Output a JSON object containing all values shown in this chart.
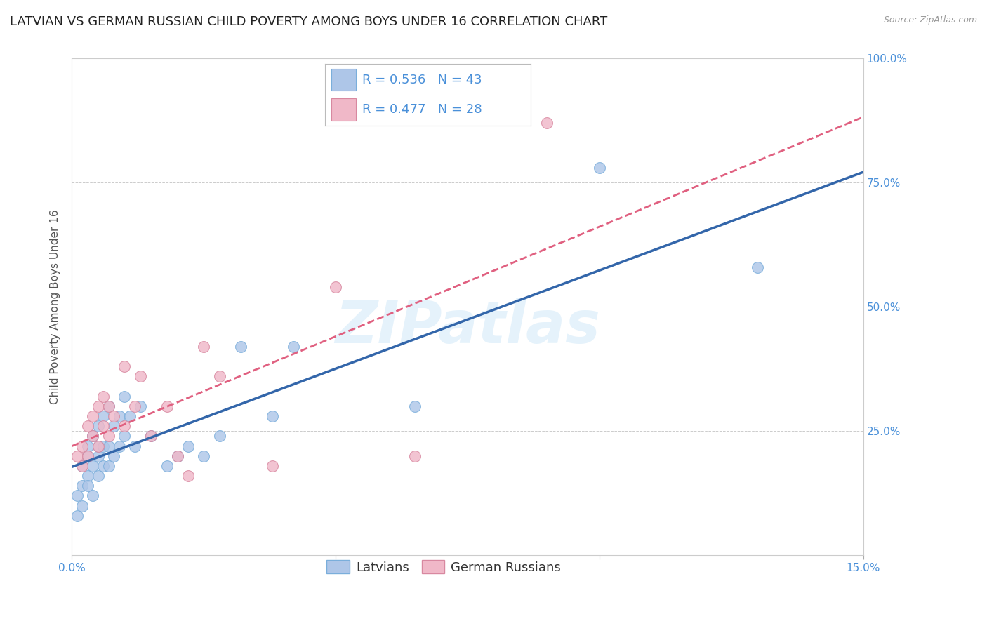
{
  "title": "LATVIAN VS GERMAN RUSSIAN CHILD POVERTY AMONG BOYS UNDER 16 CORRELATION CHART",
  "source": "Source: ZipAtlas.com",
  "ylabel": "Child Poverty Among Boys Under 16",
  "xlim": [
    0,
    0.15
  ],
  "ylim": [
    0,
    1.0
  ],
  "xticks": [
    0.0,
    0.05,
    0.1,
    0.15
  ],
  "xticklabels": [
    "0.0%",
    "",
    "",
    "15.0%"
  ],
  "yticks": [
    0.0,
    0.25,
    0.5,
    0.75,
    1.0
  ],
  "ytick_right_labels": [
    "",
    "25.0%",
    "50.0%",
    "75.0%",
    "100.0%"
  ],
  "latvians_x": [
    0.001,
    0.001,
    0.002,
    0.002,
    0.002,
    0.003,
    0.003,
    0.003,
    0.003,
    0.004,
    0.004,
    0.004,
    0.005,
    0.005,
    0.005,
    0.005,
    0.006,
    0.006,
    0.006,
    0.007,
    0.007,
    0.007,
    0.008,
    0.008,
    0.009,
    0.009,
    0.01,
    0.01,
    0.011,
    0.012,
    0.013,
    0.015,
    0.018,
    0.02,
    0.022,
    0.025,
    0.028,
    0.032,
    0.038,
    0.042,
    0.065,
    0.1,
    0.13
  ],
  "latvians_y": [
    0.12,
    0.08,
    0.18,
    0.14,
    0.1,
    0.22,
    0.16,
    0.2,
    0.14,
    0.24,
    0.18,
    0.12,
    0.26,
    0.2,
    0.16,
    0.22,
    0.28,
    0.22,
    0.18,
    0.3,
    0.22,
    0.18,
    0.26,
    0.2,
    0.28,
    0.22,
    0.32,
    0.24,
    0.28,
    0.22,
    0.3,
    0.24,
    0.18,
    0.2,
    0.22,
    0.2,
    0.24,
    0.42,
    0.28,
    0.42,
    0.3,
    0.78,
    0.58
  ],
  "german_russians_x": [
    0.001,
    0.002,
    0.002,
    0.003,
    0.003,
    0.004,
    0.004,
    0.005,
    0.005,
    0.006,
    0.006,
    0.007,
    0.007,
    0.008,
    0.01,
    0.01,
    0.012,
    0.013,
    0.015,
    0.018,
    0.02,
    0.022,
    0.025,
    0.028,
    0.038,
    0.05,
    0.065,
    0.09
  ],
  "german_russians_y": [
    0.2,
    0.22,
    0.18,
    0.26,
    0.2,
    0.28,
    0.24,
    0.3,
    0.22,
    0.32,
    0.26,
    0.3,
    0.24,
    0.28,
    0.38,
    0.26,
    0.3,
    0.36,
    0.24,
    0.3,
    0.2,
    0.16,
    0.42,
    0.36,
    0.18,
    0.54,
    0.2,
    0.87
  ],
  "latvians_color": "#aec6e8",
  "latvians_edge_color": "#7aaedb",
  "latvians_line_color": "#3366aa",
  "german_russians_color": "#f0b8c8",
  "german_russians_edge_color": "#d888a0",
  "german_russians_line_color": "#e06080",
  "R_latvians": 0.536,
  "N_latvians": 43,
  "R_german": 0.477,
  "N_german": 28,
  "marker_size": 130,
  "background_color": "#ffffff",
  "grid_color": "#cccccc",
  "tick_color": "#4a90d9",
  "legend_label_latvians": "Latvians",
  "legend_label_german": "German Russians",
  "watermark_text": "ZIPatlas",
  "title_fontsize": 13,
  "label_fontsize": 11,
  "tick_fontsize": 11,
  "legend_fontsize": 13
}
